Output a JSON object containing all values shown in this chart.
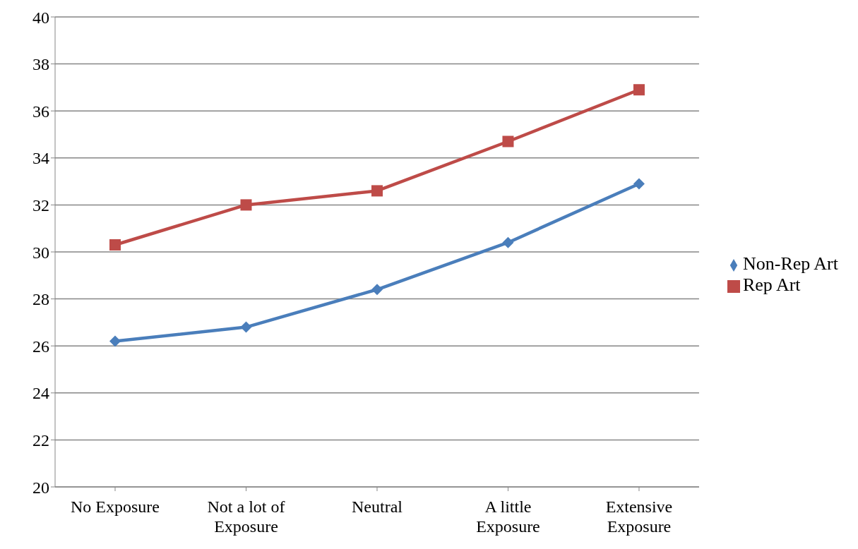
{
  "chart_data": {
    "type": "line",
    "categories": [
      "No Exposure",
      "Not a lot of Exposure",
      "Neutral",
      "A little Exposure",
      "Extensive Exposure"
    ],
    "series": [
      {
        "name": "Non-Rep Art",
        "color": "#4a7ebb",
        "marker": "diamond",
        "values": [
          26.2,
          26.8,
          28.4,
          30.4,
          32.9
        ]
      },
      {
        "name": "Rep Art",
        "color": "#be4b48",
        "marker": "square",
        "values": [
          30.3,
          32.0,
          32.6,
          34.7,
          36.9
        ]
      }
    ],
    "ylim": [
      20,
      40
    ],
    "yticks": [
      20,
      22,
      24,
      26,
      28,
      30,
      32,
      34,
      36,
      38,
      40
    ],
    "grid": "y",
    "legend": "right",
    "line_style": "solid"
  }
}
